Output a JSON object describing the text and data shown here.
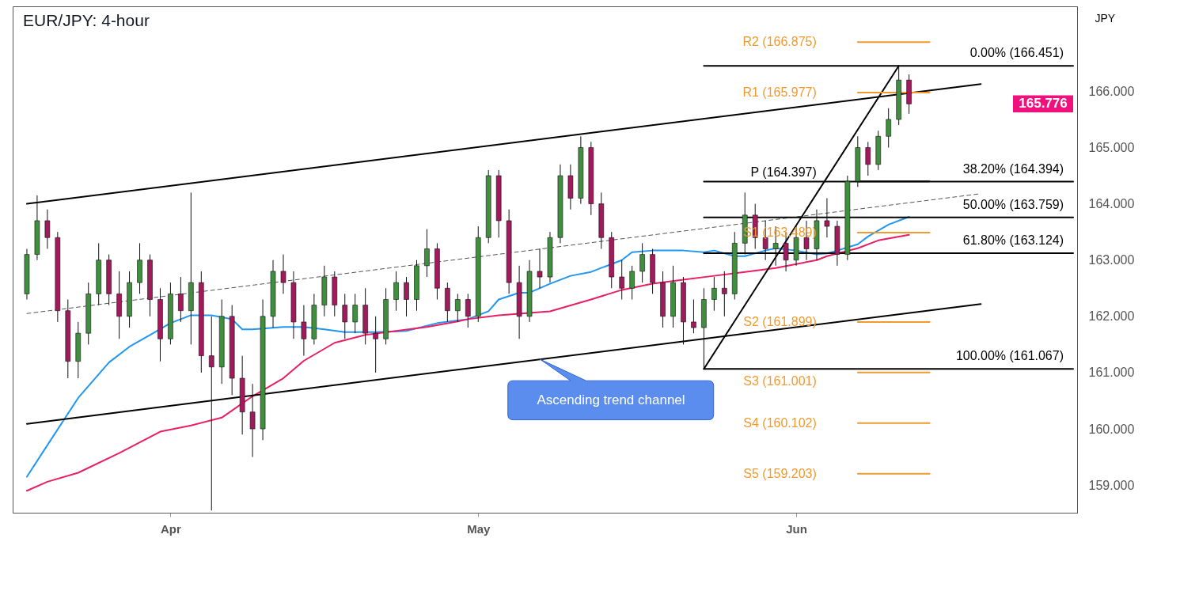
{
  "chart_data": {
    "type": "candlestick",
    "title": "EUR/JPY: 4-hour",
    "ylabel": "JPY",
    "x": [
      "--03-18",
      "--03-19",
      "--03-20",
      "--03-21",
      "--03-22",
      "--03-23",
      "--03-24",
      "--03-25",
      "--03-26",
      "--03-27",
      "--03-28",
      "--03-29",
      "--03-30",
      "--03-31",
      "--04-01",
      "--04-02",
      "--04-03",
      "--04-04",
      "--04-05",
      "--04-06",
      "--04-07",
      "--04-08",
      "--04-09",
      "--04-10",
      "--04-11",
      "--04-12",
      "--04-13",
      "--04-14",
      "--04-15",
      "--04-16",
      "--04-17",
      "--04-18",
      "--04-19",
      "--04-20",
      "--04-21",
      "--04-22",
      "--04-23",
      "--04-24",
      "--04-25",
      "--04-26",
      "--04-27",
      "--04-28",
      "--04-29",
      "--04-30",
      "--05-01",
      "--05-02",
      "--05-03",
      "--05-04",
      "--05-05",
      "--05-06",
      "--05-07",
      "--05-08",
      "--05-09",
      "--05-10",
      "--05-11",
      "--05-12",
      "--05-13",
      "--05-14",
      "--05-15",
      "--05-16",
      "--05-17",
      "--05-18",
      "--05-19",
      "--05-20",
      "--05-21",
      "--05-22",
      "--05-23",
      "--05-24",
      "--05-25",
      "--05-26",
      "--05-27",
      "--05-28",
      "--05-29",
      "--05-30",
      "--05-31",
      "--06-01",
      "--06-02",
      "--06-03",
      "--06-04",
      "--06-05",
      "--06-06",
      "--06-07",
      "--06-08",
      "--06-09",
      "--06-10",
      "--06-11",
      "--06-12"
    ],
    "ohlc": [
      [
        162.4,
        163.2,
        162.3,
        163.1
      ],
      [
        163.1,
        164.15,
        163.0,
        163.7
      ],
      [
        163.7,
        163.9,
        163.2,
        163.4
      ],
      [
        163.4,
        163.5,
        161.9,
        162.1
      ],
      [
        162.1,
        162.3,
        160.9,
        161.2
      ],
      [
        161.2,
        161.9,
        160.9,
        161.7
      ],
      [
        161.7,
        162.6,
        161.5,
        162.4
      ],
      [
        162.4,
        163.3,
        162.2,
        163.0
      ],
      [
        163.0,
        163.1,
        162.2,
        162.4
      ],
      [
        162.4,
        162.8,
        161.6,
        162.0
      ],
      [
        162.0,
        162.8,
        161.8,
        162.6
      ],
      [
        162.6,
        163.3,
        162.4,
        163.0
      ],
      [
        163.0,
        163.1,
        162.0,
        162.3
      ],
      [
        162.3,
        162.5,
        161.2,
        161.6
      ],
      [
        161.6,
        162.6,
        161.5,
        162.4
      ],
      [
        162.4,
        162.7,
        161.9,
        162.1
      ],
      [
        162.1,
        164.2,
        161.5,
        162.6
      ],
      [
        162.6,
        162.8,
        161.0,
        161.3
      ],
      [
        161.3,
        162.0,
        158.55,
        161.1
      ],
      [
        161.1,
        162.3,
        160.8,
        162.0
      ],
      [
        162.0,
        162.2,
        160.6,
        160.9
      ],
      [
        160.9,
        161.3,
        159.9,
        160.3
      ],
      [
        160.3,
        160.8,
        159.5,
        160.0
      ],
      [
        160.0,
        162.3,
        159.8,
        162.0
      ],
      [
        162.0,
        163.0,
        161.8,
        162.8
      ],
      [
        162.8,
        163.1,
        162.4,
        162.6
      ],
      [
        162.6,
        162.8,
        161.6,
        161.9
      ],
      [
        161.9,
        162.2,
        161.3,
        161.6
      ],
      [
        161.6,
        162.4,
        161.5,
        162.2
      ],
      [
        162.2,
        162.9,
        162.0,
        162.7
      ],
      [
        162.7,
        162.8,
        162.0,
        162.2
      ],
      [
        162.2,
        162.4,
        161.6,
        161.9
      ],
      [
        161.9,
        162.4,
        161.7,
        162.2
      ],
      [
        162.2,
        162.5,
        161.5,
        161.7
      ],
      [
        161.7,
        162.0,
        161.0,
        161.6
      ],
      [
        161.6,
        162.5,
        161.5,
        162.3
      ],
      [
        162.3,
        162.8,
        162.1,
        162.6
      ],
      [
        162.6,
        162.7,
        162.0,
        162.3
      ],
      [
        162.3,
        163.0,
        162.1,
        162.9
      ],
      [
        162.9,
        163.55,
        162.7,
        163.2
      ],
      [
        163.2,
        163.3,
        162.3,
        162.5
      ],
      [
        162.5,
        162.6,
        161.9,
        162.1
      ],
      [
        162.1,
        162.4,
        161.9,
        162.3
      ],
      [
        162.3,
        162.4,
        161.8,
        162.0
      ],
      [
        162.0,
        163.6,
        161.9,
        163.4
      ],
      [
        163.4,
        164.6,
        163.3,
        164.5
      ],
      [
        164.5,
        164.6,
        163.4,
        163.7
      ],
      [
        163.7,
        163.9,
        162.4,
        162.6
      ],
      [
        162.6,
        162.9,
        161.6,
        162.0
      ],
      [
        162.0,
        163.0,
        161.9,
        162.8
      ],
      [
        162.8,
        163.2,
        162.5,
        162.7
      ],
      [
        162.7,
        163.5,
        162.6,
        163.4
      ],
      [
        163.4,
        164.7,
        163.3,
        164.5
      ],
      [
        164.5,
        164.7,
        163.9,
        164.1
      ],
      [
        164.1,
        165.2,
        164.0,
        165.0
      ],
      [
        165.0,
        165.1,
        163.8,
        164.0
      ],
      [
        164.0,
        164.2,
        163.2,
        163.4
      ],
      [
        163.4,
        163.5,
        162.5,
        162.7
      ],
      [
        162.7,
        163.0,
        162.3,
        162.5
      ],
      [
        162.5,
        162.9,
        162.3,
        162.8
      ],
      [
        162.8,
        163.3,
        162.6,
        163.1
      ],
      [
        163.1,
        163.2,
        162.4,
        162.6
      ],
      [
        162.6,
        162.8,
        161.8,
        162.0
      ],
      [
        162.0,
        162.9,
        161.8,
        162.6
      ],
      [
        162.6,
        162.7,
        161.5,
        161.9
      ],
      [
        161.9,
        162.3,
        161.7,
        161.8
      ],
      [
        161.8,
        162.5,
        161.067,
        162.3
      ],
      [
        162.3,
        162.7,
        162.1,
        162.5
      ],
      [
        162.5,
        162.8,
        162.0,
        162.4
      ],
      [
        162.4,
        163.5,
        162.3,
        163.3
      ],
      [
        163.3,
        164.2,
        163.1,
        163.8
      ],
      [
        163.8,
        164.0,
        163.2,
        163.4
      ],
      [
        163.4,
        163.7,
        163.0,
        163.2
      ],
      [
        163.2,
        163.6,
        162.9,
        163.3
      ],
      [
        163.3,
        163.5,
        162.8,
        163.0
      ],
      [
        163.0,
        163.6,
        162.9,
        163.4
      ],
      [
        163.4,
        163.7,
        163.0,
        163.2
      ],
      [
        163.2,
        163.9,
        163.0,
        163.7
      ],
      [
        163.7,
        164.1,
        163.4,
        163.6
      ],
      [
        163.6,
        163.7,
        162.9,
        163.1
      ],
      [
        163.1,
        164.5,
        163.0,
        164.4
      ],
      [
        164.4,
        165.2,
        164.3,
        165.0
      ],
      [
        165.0,
        165.1,
        164.5,
        164.7
      ],
      [
        164.7,
        165.3,
        164.6,
        165.2
      ],
      [
        165.2,
        165.7,
        165.0,
        165.5
      ],
      [
        165.5,
        166.451,
        165.4,
        166.2
      ],
      [
        166.2,
        166.3,
        165.6,
        165.776
      ]
    ],
    "colors": [
      "#3f8f3f",
      "#3f8f3f",
      "#a01a5c",
      "#a01a5c",
      "#a01a5c",
      "#3f8f3f",
      "#3f8f3f",
      "#3f8f3f",
      "#a01a5c",
      "#a01a5c",
      "#3f8f3f",
      "#3f8f3f",
      "#a01a5c",
      "#a01a5c",
      "#3f8f3f",
      "#a01a5c",
      "#3f8f3f",
      "#a01a5c",
      "#a01a5c",
      "#3f8f3f",
      "#a01a5c",
      "#a01a5c",
      "#a01a5c",
      "#3f8f3f",
      "#3f8f3f",
      "#a01a5c",
      "#a01a5c",
      "#a01a5c",
      "#3f8f3f",
      "#3f8f3f",
      "#a01a5c",
      "#a01a5c",
      "#3f8f3f",
      "#a01a5c",
      "#a01a5c",
      "#3f8f3f",
      "#3f8f3f",
      "#a01a5c",
      "#3f8f3f",
      "#3f8f3f",
      "#a01a5c",
      "#a01a5c",
      "#3f8f3f",
      "#a01a5c",
      "#3f8f3f",
      "#3f8f3f",
      "#a01a5c",
      "#a01a5c",
      "#a01a5c",
      "#3f8f3f",
      "#a01a5c",
      "#3f8f3f",
      "#3f8f3f",
      "#a01a5c",
      "#3f8f3f",
      "#a01a5c",
      "#a01a5c",
      "#a01a5c",
      "#a01a5c",
      "#3f8f3f",
      "#3f8f3f",
      "#a01a5c",
      "#a01a5c",
      "#3f8f3f",
      "#a01a5c",
      "#a01a5c",
      "#3f8f3f",
      "#3f8f3f",
      "#a01a5c",
      "#3f8f3f",
      "#3f8f3f",
      "#a01a5c",
      "#a01a5c",
      "#3f8f3f",
      "#a01a5c",
      "#3f8f3f",
      "#a01a5c",
      "#3f8f3f",
      "#a01a5c",
      "#a01a5c",
      "#3f8f3f",
      "#3f8f3f",
      "#a01a5c",
      "#3f8f3f",
      "#3f8f3f",
      "#3f8f3f",
      "#a01a5c"
    ],
    "series": [
      {
        "type": "line",
        "color": "#2196f3",
        "x": [
          "--03-18",
          "--03-20",
          "--03-23",
          "--03-26",
          "--03-28",
          "--03-30",
          "--04-01",
          "--04-03",
          "--04-05",
          "--04-07",
          "--04-08",
          "--04-09",
          "--04-12",
          "--04-14",
          "--04-16",
          "--04-18",
          "--04-21",
          "--04-24",
          "--04-27",
          "--04-30",
          "--05-02",
          "--05-03",
          "--05-05",
          "--05-06",
          "--05-08",
          "--05-10",
          "--05-12",
          "--05-15",
          "--05-16",
          "--05-18",
          "--05-21",
          "--05-23",
          "--05-24",
          "--05-26",
          "--05-27",
          "--05-29",
          "--05-30",
          "--06-01",
          "--06-03",
          "--06-04",
          "--06-05",
          "--06-07",
          "--06-08",
          "--06-10",
          "--06-12"
        ],
        "values": [
          159.15,
          159.71,
          160.55,
          161.18,
          161.46,
          161.67,
          161.88,
          162.02,
          162.02,
          161.95,
          161.77,
          161.77,
          161.81,
          161.81,
          161.77,
          161.72,
          161.72,
          161.74,
          161.88,
          161.95,
          162.09,
          162.3,
          162.42,
          162.42,
          162.58,
          162.72,
          162.79,
          163.0,
          163.14,
          163.17,
          163.17,
          163.14,
          163.17,
          163.07,
          163.07,
          163.17,
          163.21,
          163.17,
          163.1,
          163.12,
          163.17,
          163.28,
          163.42,
          163.63,
          163.77
        ]
      },
      {
        "type": "line",
        "color": "#e91e63",
        "x": [
          "--03-18",
          "--03-20",
          "--03-23",
          "--03-27",
          "--03-31",
          "--04-03",
          "--04-06",
          "--04-09",
          "--04-12",
          "--04-14",
          "--04-17",
          "--04-20",
          "--04-23",
          "--04-26",
          "--04-29",
          "--04-30",
          "--05-03",
          "--05-08",
          "--05-12",
          "--05-15",
          "--05-18",
          "--05-21",
          "--05-24",
          "--05-27",
          "--05-30",
          "--06-03",
          "--06-04",
          "--06-07",
          "--06-09",
          "--06-12"
        ],
        "values": [
          158.9,
          159.06,
          159.22,
          159.57,
          159.95,
          160.06,
          160.2,
          160.58,
          160.9,
          161.21,
          161.53,
          161.67,
          161.74,
          161.81,
          161.91,
          161.95,
          162.02,
          162.09,
          162.3,
          162.47,
          162.58,
          162.65,
          162.72,
          162.79,
          162.86,
          163.0,
          163.07,
          163.21,
          163.35,
          163.45
        ]
      },
      {
        "type": "line",
        "color": "#000000",
        "x": [
          "--03-18",
          "--06-19"
        ],
        "values": [
          164.0,
          166.13
        ]
      },
      {
        "type": "line",
        "color": "#000000",
        "x": [
          "--03-18",
          "--06-19"
        ],
        "values": [
          160.09,
          162.22
        ]
      },
      {
        "type": "line",
        "color": "#555555",
        "line_style": "dashed",
        "x": [
          "--03-18",
          "--06-19"
        ],
        "values": [
          162.05,
          164.18
        ]
      },
      {
        "type": "line",
        "color": "#000000",
        "x": [
          "--05-23",
          "--06-11"
        ],
        "values": [
          161.067,
          166.451
        ]
      },
      {
        "type": "line",
        "color": "#000000",
        "x": [
          "--05-23",
          "--06-28"
        ],
        "values": [
          166.451,
          166.451
        ]
      },
      {
        "type": "line",
        "color": "#000000",
        "x": [
          "--05-23",
          "--06-28"
        ],
        "values": [
          164.394,
          164.394
        ]
      },
      {
        "type": "line",
        "color": "#000000",
        "x": [
          "--05-23",
          "--06-28"
        ],
        "values": [
          163.759,
          163.759
        ]
      },
      {
        "type": "line",
        "color": "#000000",
        "x": [
          "--05-23",
          "--06-28"
        ],
        "values": [
          163.124,
          163.124
        ]
      },
      {
        "type": "line",
        "color": "#000000",
        "x": [
          "--05-23",
          "--06-28"
        ],
        "values": [
          161.067,
          161.067
        ]
      },
      {
        "type": "line",
        "color": "#f29a2e",
        "x": [
          "--06-07",
          "--06-14"
        ],
        "values": [
          166.875,
          166.875
        ]
      },
      {
        "type": "line",
        "color": "#f29a2e",
        "x": [
          "--06-07",
          "--06-14"
        ],
        "values": [
          165.977,
          165.977
        ]
      },
      {
        "type": "line",
        "color": "#000000",
        "x": [
          "--06-07",
          "--06-14"
        ],
        "values": [
          164.397,
          164.397
        ]
      },
      {
        "type": "line",
        "color": "#f29a2e",
        "x": [
          "--06-07",
          "--06-14"
        ],
        "values": [
          163.489,
          163.489
        ]
      },
      {
        "type": "line",
        "color": "#f29a2e",
        "x": [
          "--06-07",
          "--06-14"
        ],
        "values": [
          161.899,
          161.899
        ]
      },
      {
        "type": "line",
        "color": "#f29a2e",
        "x": [
          "--06-07",
          "--06-14"
        ],
        "values": [
          161.001,
          161.001
        ]
      },
      {
        "type": "line",
        "color": "#f29a2e",
        "x": [
          "--06-07",
          "--06-14"
        ],
        "values": [
          160.102,
          160.102
        ]
      },
      {
        "type": "line",
        "color": "#f29a2e",
        "x": [
          "--06-07",
          "--06-14"
        ],
        "values": [
          159.203,
          159.203
        ]
      }
    ],
    "xlim": [
      "--03-17",
      "--06-28"
    ],
    "xticks": [
      {
        "value": "--04-01",
        "label": "Apr"
      },
      {
        "value": "--05-01",
        "label": "May"
      },
      {
        "value": "--06-01",
        "label": "Jun"
      }
    ],
    "ylim": [
      158.51,
      167.51
    ],
    "yticks": [
      {
        "value": 159,
        "label": "159.000"
      },
      {
        "value": 160,
        "label": "160.000"
      },
      {
        "value": 161,
        "label": "161.000"
      },
      {
        "value": 162,
        "label": "162.000"
      },
      {
        "value": 163,
        "label": "163.000"
      },
      {
        "value": 164,
        "label": "164.000"
      },
      {
        "value": 165,
        "label": "165.000"
      },
      {
        "value": 166,
        "label": "166.000"
      }
    ],
    "annotations": [
      {
        "text": "0.00% (166.451)",
        "x": "--06-28",
        "y": 166.451
      },
      {
        "text": "38.20% (164.394)",
        "x": "--06-28",
        "y": 164.394
      },
      {
        "text": "50.00% (163.759)",
        "x": "--06-28",
        "y": 163.759
      },
      {
        "text": "61.80% (163.124)",
        "x": "--06-28",
        "y": 163.124
      },
      {
        "text": "100.00% (161.067)",
        "x": "--06-28",
        "y": 161.067
      },
      "R2 (166.875)",
      "R1 (165.977)",
      "P (164.397)",
      "S1 (163.489)",
      "S2 (161.899)",
      "S3 (161.001)",
      "S4 (160.102)",
      "S5 (159.203)",
      {
        "text": "Ascending trend channel",
        "x": "--05-07",
        "y": 161.24
      },
      "165.776"
    ]
  }
}
